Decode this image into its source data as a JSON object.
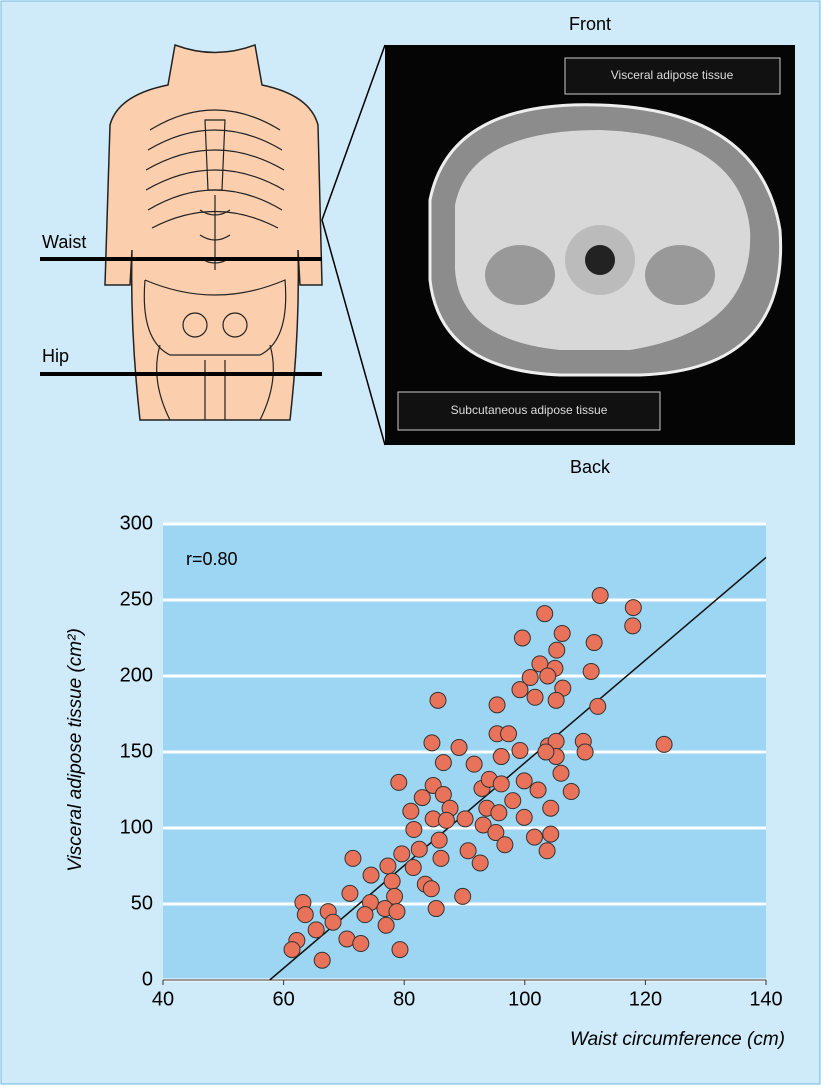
{
  "figure": {
    "waist_label": "Waist",
    "hip_label": "Hip",
    "front_label": "Front",
    "back_label": "Back",
    "visceral_label": "Visceral adipose tissue",
    "subcutaneous_label": "Subcutaneous adipose tissue"
  },
  "chart_data": {
    "type": "scatter",
    "annotation": "r=0.80",
    "x_label": "Waist circumference (cm)",
    "y_label": "Visceral adipose tissue (cm²)",
    "xlim": [
      40,
      140
    ],
    "ylim": [
      0,
      300
    ],
    "xticks": [
      40,
      60,
      80,
      100,
      120,
      140
    ],
    "yticks": [
      0,
      50,
      100,
      150,
      200,
      250,
      300
    ],
    "grid": true,
    "color": "#e8735a",
    "x": [
      118.0,
      112.5,
      117.9,
      103.3,
      99.6,
      106.2,
      111.5,
      102.5,
      105.0,
      100.9,
      105.3,
      111.0,
      99.2,
      101.7,
      103.8,
      106.3,
      105.2,
      112.1,
      85.6,
      95.4,
      95.4,
      97.3,
      96.1,
      99.2,
      103.9,
      105.2,
      109.7,
      110.0,
      105.2,
      123.1,
      103.5,
      84.6,
      89.1,
      86.5,
      91.6,
      106.0,
      107.7,
      79.1,
      92.9,
      94.1,
      96.1,
      99.9,
      102.2,
      98.0,
      104.3,
      84.8,
      83.0,
      86.5,
      87.6,
      81.1,
      93.7,
      95.7,
      84.8,
      87.0,
      90.1,
      93.1,
      99.9,
      81.6,
      95.2,
      101.6,
      104.3,
      103.7,
      96.7,
      90.6,
      92.6,
      85.8,
      82.5,
      79.6,
      86.1,
      71.5,
      81.5,
      77.3,
      74.5,
      78.0,
      83.5,
      84.5,
      89.7,
      71.0,
      78.4,
      74.4,
      63.2,
      85.3,
      76.8,
      78.8,
      63.6,
      67.4,
      73.5,
      68.2,
      77.0,
      65.4,
      70.5,
      72.8,
      62.2,
      61.4,
      79.3,
      66.4
    ],
    "values": [
      245,
      253,
      233,
      241,
      225,
      228,
      222,
      208,
      205,
      199,
      217,
      203,
      191,
      186,
      200,
      192,
      184,
      180,
      184,
      181,
      162,
      162,
      147,
      151,
      154,
      157,
      157,
      150,
      147,
      155,
      150,
      156,
      153,
      143,
      142,
      136,
      124,
      130,
      126,
      132,
      129,
      131,
      125,
      118,
      113,
      128,
      120,
      122,
      113,
      111,
      113,
      110,
      106,
      105,
      106,
      102,
      107,
      99,
      97,
      94,
      96,
      85,
      89,
      85,
      77,
      92,
      86,
      83,
      80,
      80,
      74,
      75,
      69,
      65,
      63,
      60,
      55,
      57,
      55,
      51,
      51,
      47,
      47,
      45,
      43,
      45,
      43,
      38,
      36,
      33,
      27,
      24,
      26,
      20,
      20,
      13
    ],
    "fit": {
      "x": [
        57.7,
        140
      ],
      "y": [
        0,
        278
      ],
      "color": "#111111"
    }
  }
}
